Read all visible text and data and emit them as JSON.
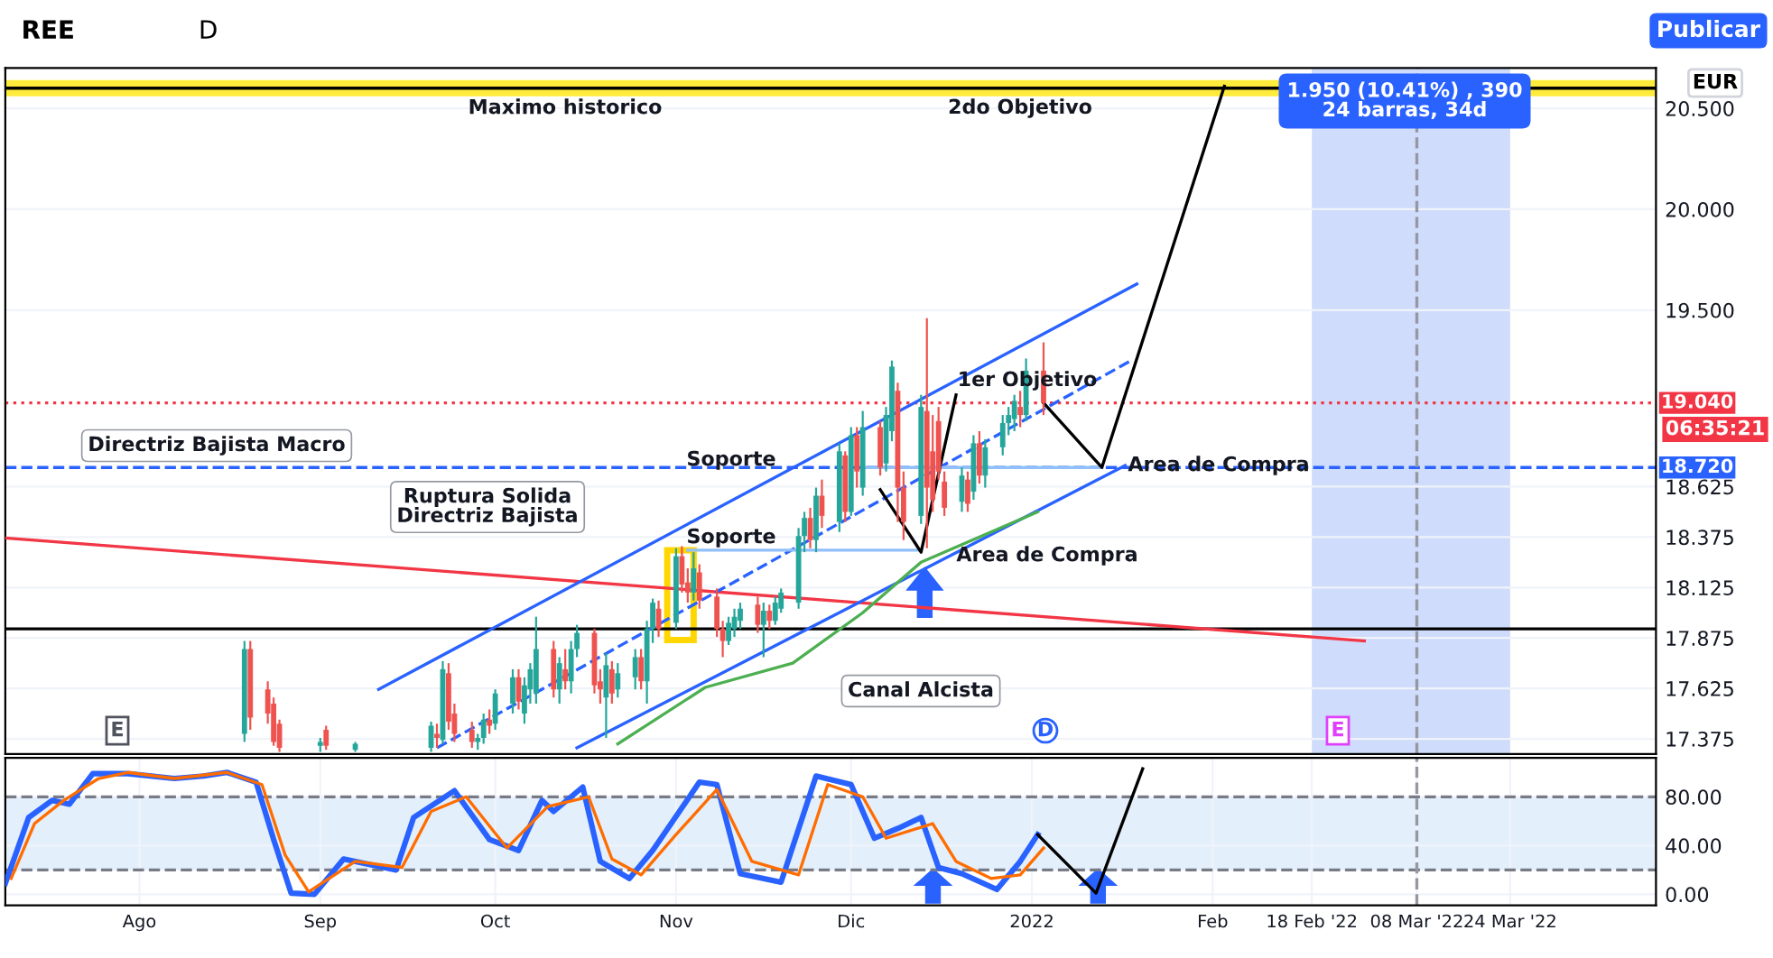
{
  "chart_data": [
    {
      "type": "candlestick",
      "title": "REE",
      "subtitle": "D",
      "x": [
        "2021-08-19",
        "2021-08-20",
        "2021-08-23",
        "2021-08-24",
        "2021-08-25",
        "2021-09-01",
        "2021-09-02",
        "2021-09-07",
        "2021-09-20",
        "2021-09-21",
        "2021-09-22",
        "2021-09-23",
        "2021-09-24",
        "2021-09-27",
        "2021-09-28",
        "2021-09-29",
        "2021-09-30",
        "2021-10-01",
        "2021-10-04",
        "2021-10-05",
        "2021-10-06",
        "2021-10-07",
        "2021-10-08",
        "2021-10-11",
        "2021-10-12",
        "2021-10-13",
        "2021-10-14",
        "2021-10-15",
        "2021-10-18",
        "2021-10-19",
        "2021-10-20",
        "2021-10-21",
        "2021-10-22",
        "2021-10-25",
        "2021-10-26",
        "2021-10-27",
        "2021-10-28",
        "2021-10-29",
        "2021-11-01",
        "2021-11-02",
        "2021-11-03",
        "2021-11-04",
        "2021-11-05",
        "2021-11-08",
        "2021-11-09",
        "2021-11-10",
        "2021-11-11",
        "2021-11-12",
        "2021-11-15",
        "2021-11-16",
        "2021-11-17",
        "2021-11-18",
        "2021-11-19",
        "2021-11-22",
        "2021-11-23",
        "2021-11-24",
        "2021-11-25",
        "2021-11-26",
        "2021-11-29",
        "2021-11-30",
        "2021-12-01",
        "2021-12-02",
        "2021-12-03",
        "2021-12-06",
        "2021-12-07",
        "2021-12-08",
        "2021-12-09",
        "2021-12-10",
        "2021-12-13",
        "2021-12-14",
        "2021-12-15",
        "2021-12-16",
        "2021-12-17",
        "2021-12-20",
        "2021-12-21",
        "2021-12-22",
        "2021-12-23",
        "2021-12-24",
        "2021-12-27",
        "2021-12-28",
        "2021-12-29",
        "2021-12-30",
        "2021-12-31",
        "2022-01-03"
      ],
      "ohlc": [
        [
          17.4,
          17.86,
          17.36,
          17.82
        ],
        [
          17.82,
          17.86,
          17.42,
          17.48
        ],
        [
          17.62,
          17.66,
          17.45,
          17.5
        ],
        [
          17.55,
          17.58,
          17.34,
          17.36
        ],
        [
          17.45,
          17.47,
          17.31,
          17.33
        ],
        [
          17.34,
          17.38,
          17.31,
          17.36
        ],
        [
          17.42,
          17.44,
          17.32,
          17.34
        ],
        [
          17.32,
          17.36,
          17.31,
          17.35
        ],
        [
          17.33,
          17.46,
          17.31,
          17.44
        ],
        [
          17.4,
          17.45,
          17.33,
          17.38
        ],
        [
          17.37,
          17.76,
          17.35,
          17.72
        ],
        [
          17.7,
          17.75,
          17.42,
          17.46
        ],
        [
          17.5,
          17.55,
          17.36,
          17.4
        ],
        [
          17.42,
          17.46,
          17.33,
          17.36
        ],
        [
          17.36,
          17.4,
          17.32,
          17.38
        ],
        [
          17.38,
          17.5,
          17.35,
          17.47
        ],
        [
          17.47,
          17.52,
          17.4,
          17.44
        ],
        [
          17.45,
          17.62,
          17.42,
          17.6
        ],
        [
          17.55,
          17.72,
          17.5,
          17.68
        ],
        [
          17.68,
          17.72,
          17.52,
          17.56
        ],
        [
          17.5,
          17.68,
          17.45,
          17.64
        ],
        [
          17.62,
          17.75,
          17.55,
          17.72
        ],
        [
          17.6,
          17.98,
          17.55,
          17.82
        ],
        [
          17.82,
          17.86,
          17.58,
          17.62
        ],
        [
          17.62,
          17.78,
          17.55,
          17.75
        ],
        [
          17.72,
          17.82,
          17.62,
          17.66
        ],
        [
          17.66,
          17.86,
          17.6,
          17.82
        ],
        [
          17.82,
          17.94,
          17.78,
          17.9
        ],
        [
          17.9,
          17.92,
          17.6,
          17.64
        ],
        [
          17.66,
          17.72,
          17.55,
          17.62
        ],
        [
          17.58,
          17.8,
          17.38,
          17.74
        ],
        [
          17.72,
          17.76,
          17.55,
          17.6
        ],
        [
          17.62,
          17.75,
          17.58,
          17.7
        ],
        [
          17.68,
          17.82,
          17.62,
          17.78
        ],
        [
          17.78,
          17.82,
          17.62,
          17.66
        ],
        [
          17.66,
          17.96,
          17.55,
          17.92
        ],
        [
          17.92,
          18.07,
          17.85,
          18.05
        ],
        [
          18.02,
          18.06,
          17.88,
          17.92
        ],
        [
          17.95,
          18.32,
          17.92,
          18.28
        ],
        [
          18.28,
          18.33,
          18.1,
          18.14
        ],
        [
          18.15,
          18.22,
          18.05,
          18.1
        ],
        [
          18.1,
          18.3,
          18.06,
          18.22
        ],
        [
          18.2,
          18.24,
          18.02,
          18.06
        ],
        [
          18.08,
          18.12,
          17.88,
          17.92
        ],
        [
          17.92,
          17.96,
          17.78,
          17.86
        ],
        [
          17.86,
          17.98,
          17.84,
          17.95
        ],
        [
          17.92,
          18.02,
          17.88,
          17.98
        ],
        [
          17.96,
          18.05,
          17.92,
          18.02
        ],
        [
          18.04,
          18.08,
          17.9,
          17.94
        ],
        [
          17.94,
          18.05,
          17.78,
          18.01
        ],
        [
          18.01,
          18.04,
          17.92,
          17.96
        ],
        [
          17.96,
          18.08,
          17.94,
          18.05
        ],
        [
          18.02,
          18.12,
          18.0,
          18.1
        ],
        [
          18.05,
          18.42,
          18.02,
          18.38
        ],
        [
          18.38,
          18.5,
          18.3,
          18.47
        ],
        [
          18.47,
          18.52,
          18.32,
          18.36
        ],
        [
          18.36,
          18.62,
          18.3,
          18.58
        ],
        [
          18.58,
          18.66,
          18.42,
          18.48
        ],
        [
          18.45,
          18.84,
          18.4,
          18.8
        ],
        [
          18.78,
          18.8,
          18.45,
          18.5
        ],
        [
          18.5,
          18.92,
          18.48,
          18.88
        ],
        [
          18.88,
          18.92,
          18.62,
          18.7
        ],
        [
          18.62,
          19.0,
          18.58,
          18.92
        ],
        [
          18.92,
          18.95,
          18.68,
          18.72
        ],
        [
          18.74,
          19.02,
          18.7,
          18.98
        ],
        [
          18.9,
          19.25,
          18.85,
          19.22
        ],
        [
          19.1,
          19.14,
          18.45,
          18.62
        ],
        [
          18.62,
          18.7,
          18.36,
          18.45
        ],
        [
          18.48,
          19.08,
          18.44,
          19.02
        ],
        [
          19.0,
          19.46,
          18.32,
          18.62
        ],
        [
          18.8,
          18.98,
          18.5,
          18.56
        ],
        [
          18.95,
          19.02,
          18.66,
          18.7
        ],
        [
          18.65,
          18.7,
          18.48,
          18.52
        ],
        [
          18.55,
          18.72,
          18.5,
          18.68
        ],
        [
          18.66,
          18.7,
          18.5,
          18.54
        ],
        [
          18.6,
          18.88,
          18.56,
          18.84
        ],
        [
          18.84,
          18.9,
          18.64,
          18.68
        ],
        [
          18.68,
          18.86,
          18.62,
          18.82
        ],
        [
          18.82,
          18.98,
          18.78,
          18.94
        ],
        [
          18.94,
          19.02,
          18.88,
          18.98
        ],
        [
          18.96,
          19.08,
          18.9,
          19.05
        ],
        [
          19.02,
          19.1,
          18.92,
          18.98
        ],
        [
          18.98,
          19.26,
          18.95,
          19.2
        ],
        [
          19.2,
          19.34,
          18.98,
          19.04
        ]
      ],
      "series": [
        {
          "type": "line",
          "color": "#f23645",
          "x": [
            "2021-07-09",
            "2022-02-27"
          ],
          "values": [
            18.37,
            17.86
          ]
        },
        {
          "type": "line",
          "color": "#2962ff",
          "x": [
            "2021-09-11",
            "2022-01-19"
          ],
          "values": [
            17.62,
            19.63
          ]
        },
        {
          "type": "line",
          "color": "#2962ff",
          "x": [
            "2021-10-15",
            "2022-01-17"
          ],
          "values": [
            17.33,
            18.73
          ]
        },
        {
          "type": "line",
          "color": "#2962ff",
          "line_style": "dashed",
          "x": [
            "2021-09-21",
            "2022-01-18"
          ],
          "values": [
            17.33,
            19.25
          ]
        },
        {
          "type": "line",
          "color": "#4caf50",
          "x": [
            "2021-10-22",
            "2021-11-06",
            "2021-11-21",
            "2021-12-03",
            "2021-12-13",
            "2022-01-02"
          ],
          "values": [
            17.35,
            17.63,
            17.75,
            18.0,
            18.25,
            18.5
          ]
        },
        {
          "type": "line",
          "color": "#90bff9",
          "x": [
            "2021-12-03",
            "2022-01-13"
          ],
          "values": [
            18.72,
            18.72
          ]
        },
        {
          "type": "line",
          "color": "#90bff9",
          "x": [
            "2021-11-03",
            "2021-12-13"
          ],
          "values": [
            18.31,
            18.31
          ]
        },
        {
          "type": "line",
          "color": "#000000",
          "x": [
            "2021-12-06",
            "2021-12-13",
            "2021-12-19"
          ],
          "values": [
            18.61,
            18.3,
            19.08
          ]
        },
        {
          "type": "line",
          "color": "#000000",
          "x": [
            "2022-01-03",
            "2022-01-13",
            "2022-02-03"
          ],
          "values": [
            19.04,
            18.72,
            20.61
          ]
        }
      ],
      "ref_lines": [
        {
          "axis": "y",
          "value": 20.6,
          "color": "#000000"
        },
        {
          "axis": "y",
          "value": 17.92,
          "color": "#000000"
        },
        {
          "axis": "y",
          "value": 19.04,
          "color": "#f23645",
          "line_style": "dotted",
          "label": "19.040"
        },
        {
          "axis": "y",
          "value": 18.72,
          "color": "#2962ff",
          "line_style": "dashed",
          "label": "18.720"
        },
        {
          "axis": "x",
          "value": "2022-03-08",
          "color": "#9598a1",
          "line_style": "dashed"
        }
      ],
      "bands": [
        {
          "axis": "y",
          "from": 20.56,
          "to": 20.64,
          "color": "#ffeb3b"
        },
        {
          "axis": "x",
          "from": "2022-02-18",
          "to": "2022-03-24",
          "color": "#cfdcfb"
        }
      ],
      "annotations": [
        "Publicar",
        "EUR",
        "06:35:21",
        "Maximo historico",
        "2do Objetivo",
        "Directriz Bajista Macro",
        "Ruptura Solida\nDirectriz Bajista",
        "Soporte",
        "Soporte",
        "1er Objetivo",
        "Area de Compra",
        "Area de Compra",
        "Canal Alcista",
        "1.950 (10.41%) , 390\n24 barras, 34d",
        "E",
        "D",
        "E"
      ],
      "xlim": [
        "2021-07-09",
        "2022-04-18"
      ],
      "ylim": [
        17.3,
        20.7
      ],
      "yticks": [
        {
          "value": 20.5,
          "label": "20.500"
        },
        {
          "value": 20.0,
          "label": "20.000"
        },
        {
          "value": 19.5,
          "label": "19.500"
        },
        {
          "value": 18.625,
          "label": "18.625"
        },
        {
          "value": 18.375,
          "label": "18.375"
        },
        {
          "value": 18.125,
          "label": "18.125"
        },
        {
          "value": 17.875,
          "label": "17.875"
        },
        {
          "value": 17.625,
          "label": "17.625"
        },
        {
          "value": 17.375,
          "label": "17.375"
        }
      ],
      "tick_labels": "y",
      "grid": true
    },
    {
      "type": "line",
      "series": [
        {
          "color": "#2962ff",
          "x": [
            "2021-07-09",
            "2021-07-13",
            "2021-07-17",
            "2021-07-20",
            "2021-07-24",
            "2021-07-30",
            "2021-08-07",
            "2021-08-12",
            "2021-08-16",
            "2021-08-21",
            "2021-08-24",
            "2021-08-27",
            "2021-08-31",
            "2021-09-05",
            "2021-09-14",
            "2021-09-17",
            "2021-09-24",
            "2021-09-30",
            "2021-10-05",
            "2021-10-09",
            "2021-10-11",
            "2021-10-16",
            "2021-10-19",
            "2021-10-24",
            "2021-10-28",
            "2021-11-05",
            "2021-11-08",
            "2021-11-12",
            "2021-11-19",
            "2021-11-25",
            "2021-12-01",
            "2021-12-05",
            "2021-12-09",
            "2021-12-13",
            "2021-12-16",
            "2021-12-20",
            "2021-12-26",
            "2021-12-30",
            "2022-01-02"
          ],
          "values": [
            9,
            63,
            77,
            74,
            99,
            99,
            95,
            97,
            100,
            92,
            45,
            1,
            0,
            29,
            20,
            63,
            85,
            45,
            36,
            77,
            68,
            88,
            27,
            13,
            36,
            92,
            90,
            17,
            10,
            97,
            90,
            46,
            54,
            63,
            22,
            17,
            4,
            27,
            49
          ]
        },
        {
          "color": "#ff6d00",
          "x": [
            "2021-07-10",
            "2021-07-14",
            "2021-07-19",
            "2021-07-25",
            "2021-07-30",
            "2021-08-07",
            "2021-08-16",
            "2021-08-22",
            "2021-08-26",
            "2021-08-30",
            "2021-09-07",
            "2021-09-15",
            "2021-09-20",
            "2021-09-26",
            "2021-10-03",
            "2021-10-10",
            "2021-10-17",
            "2021-10-21",
            "2021-10-26",
            "2021-11-01",
            "2021-11-08",
            "2021-11-14",
            "2021-11-22",
            "2021-11-27",
            "2021-12-03",
            "2021-12-07",
            "2021-12-15",
            "2021-12-19",
            "2021-12-25",
            "2021-12-30",
            "2022-01-03"
          ],
          "values": [
            13,
            58,
            77,
            95,
            100,
            95,
            100,
            90,
            32,
            2,
            27,
            22,
            68,
            80,
            38,
            72,
            80,
            29,
            16,
            49,
            86,
            27,
            16,
            90,
            80,
            46,
            58,
            27,
            13,
            16,
            38
          ]
        },
        {
          "color": "#000000",
          "x": [
            "2022-01-02",
            "2022-01-12",
            "2022-01-20"
          ],
          "values": [
            49,
            1,
            103
          ]
        }
      ],
      "ref_lines": [
        {
          "axis": "y",
          "value": 80,
          "color": "#787b86",
          "line_style": "dashed"
        },
        {
          "axis": "y",
          "value": 20,
          "color": "#787b86",
          "line_style": "dashed"
        },
        {
          "axis": "x",
          "value": "2022-03-08",
          "color": "#9598a1",
          "line_style": "dashed"
        }
      ],
      "bands": [
        {
          "axis": "y",
          "from": 20,
          "to": 80,
          "color": "#e3effb"
        }
      ],
      "xlim": [
        "2021-07-09",
        "2022-04-18"
      ],
      "ylim": [
        -9,
        112
      ],
      "yticks": [
        {
          "value": 0,
          "label": "0.00"
        },
        {
          "value": 40,
          "label": "40.00"
        },
        {
          "value": 80,
          "label": "80.00"
        }
      ],
      "xticks": [
        {
          "value": "2021-08-01",
          "label": "Ago"
        },
        {
          "value": "2021-09-01",
          "label": "Sep"
        },
        {
          "value": "2021-10-01",
          "label": "Oct"
        },
        {
          "value": "2021-11-01",
          "label": "Nov"
        },
        {
          "value": "2021-12-01",
          "label": "Dic"
        },
        {
          "value": "2022-01-01",
          "label": "2022"
        },
        {
          "value": "2022-02-01",
          "label": "Feb"
        },
        {
          "value": "2022-02-18",
          "label": "18 Feb '22"
        },
        {
          "value": "2022-03-08",
          "label": "08 Mar '22"
        },
        {
          "value": "2022-03-24",
          "label": "24 Mar '22"
        }
      ],
      "grid": true
    }
  ]
}
